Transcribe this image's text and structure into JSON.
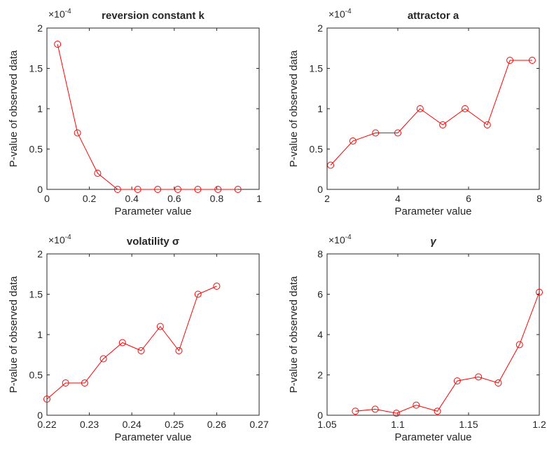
{
  "chart_data": [
    {
      "type": "line",
      "title": "reversion constant k",
      "title_italic": false,
      "xlabel": "Parameter value",
      "ylabel": "P-value of observed data",
      "multiplier": {
        "base": "×10",
        "exp": "-4"
      },
      "xlim": [
        0,
        1
      ],
      "ylim": [
        0,
        2
      ],
      "xticks": [
        0,
        0.2,
        0.4,
        0.6,
        0.8,
        1
      ],
      "xtick_labels": [
        "0",
        "0.2",
        "0.4",
        "0.6",
        "0.8",
        "1"
      ],
      "yticks": [
        0,
        0.5,
        1,
        1.5,
        2
      ],
      "ytick_labels": [
        "0",
        "0.5",
        "1",
        "1.5",
        "2"
      ],
      "color": "#ff0000",
      "marker": "circle",
      "grid": false,
      "series": [
        {
          "x": [
            0.05,
            0.144,
            0.239,
            0.333,
            0.428,
            0.522,
            0.617,
            0.711,
            0.806,
            0.9
          ],
          "y": [
            1.8,
            0.7,
            0.2,
            0,
            0,
            0,
            0,
            0,
            0,
            0
          ]
        }
      ]
    },
    {
      "type": "line",
      "title": "attractor a",
      "title_italic": false,
      "xlabel": "Parameter value",
      "ylabel": "P-value of observed data",
      "multiplier": {
        "base": "×10",
        "exp": "-4"
      },
      "xlim": [
        2,
        8
      ],
      "ylim": [
        0,
        2
      ],
      "xticks": [
        2,
        4,
        6,
        8
      ],
      "xtick_labels": [
        "2",
        "4",
        "6",
        "8"
      ],
      "yticks": [
        0,
        0.5,
        1,
        1.5,
        2
      ],
      "ytick_labels": [
        "0",
        "0.5",
        "1",
        "1.5",
        "2"
      ],
      "color": "#ff0000",
      "marker": "circle",
      "grid": false,
      "series": [
        {
          "x": [
            2.1,
            2.73,
            3.37,
            4.0,
            4.63,
            5.27,
            5.9,
            6.53,
            7.17,
            7.8
          ],
          "y": [
            0.3,
            0.6,
            0.7,
            0.7,
            1.0,
            0.8,
            1.0,
            0.8,
            1.6,
            1.6
          ]
        }
      ]
    },
    {
      "type": "line",
      "title": "volatility σ",
      "title_italic": false,
      "xlabel": "Parameter value",
      "ylabel": "P-value of observed data",
      "multiplier": {
        "base": "×10",
        "exp": "-4"
      },
      "xlim": [
        0.22,
        0.27
      ],
      "ylim": [
        0,
        2
      ],
      "xticks": [
        0.22,
        0.23,
        0.24,
        0.25,
        0.26,
        0.27
      ],
      "xtick_labels": [
        "0.22",
        "0.23",
        "0.24",
        "0.25",
        "0.26",
        "0.27"
      ],
      "yticks": [
        0,
        0.5,
        1,
        1.5,
        2
      ],
      "ytick_labels": [
        "0",
        "0.5",
        "1",
        "1.5",
        "2"
      ],
      "color": "#ff0000",
      "marker": "circle",
      "grid": false,
      "series": [
        {
          "x": [
            0.22,
            0.2244,
            0.2289,
            0.2333,
            0.2378,
            0.2422,
            0.2467,
            0.2511,
            0.2556,
            0.26
          ],
          "y": [
            0.2,
            0.4,
            0.4,
            0.7,
            0.9,
            0.8,
            1.1,
            0.8,
            1.5,
            1.6
          ]
        }
      ]
    },
    {
      "type": "line",
      "title": "γ",
      "title_italic": true,
      "xlabel": "Parameter value",
      "ylabel": "P-value of observed data",
      "multiplier": {
        "base": "×10",
        "exp": "-4"
      },
      "xlim": [
        1.05,
        1.2
      ],
      "ylim": [
        0,
        8
      ],
      "xticks": [
        1.05,
        1.1,
        1.15,
        1.2
      ],
      "xtick_labels": [
        "1.05",
        "1.1",
        "1.15",
        "1.2"
      ],
      "yticks": [
        0,
        2,
        4,
        6,
        8
      ],
      "ytick_labels": [
        "0",
        "2",
        "4",
        "6",
        "8"
      ],
      "color": "#ff0000",
      "marker": "circle",
      "grid": false,
      "series": [
        {
          "x": [
            1.07,
            1.084,
            1.099,
            1.113,
            1.128,
            1.142,
            1.157,
            1.171,
            1.186,
            1.2
          ],
          "y": [
            0.2,
            0.3,
            0.1,
            0.5,
            0.2,
            1.7,
            1.9,
            1.6,
            3.5,
            6.1
          ]
        }
      ]
    }
  ]
}
